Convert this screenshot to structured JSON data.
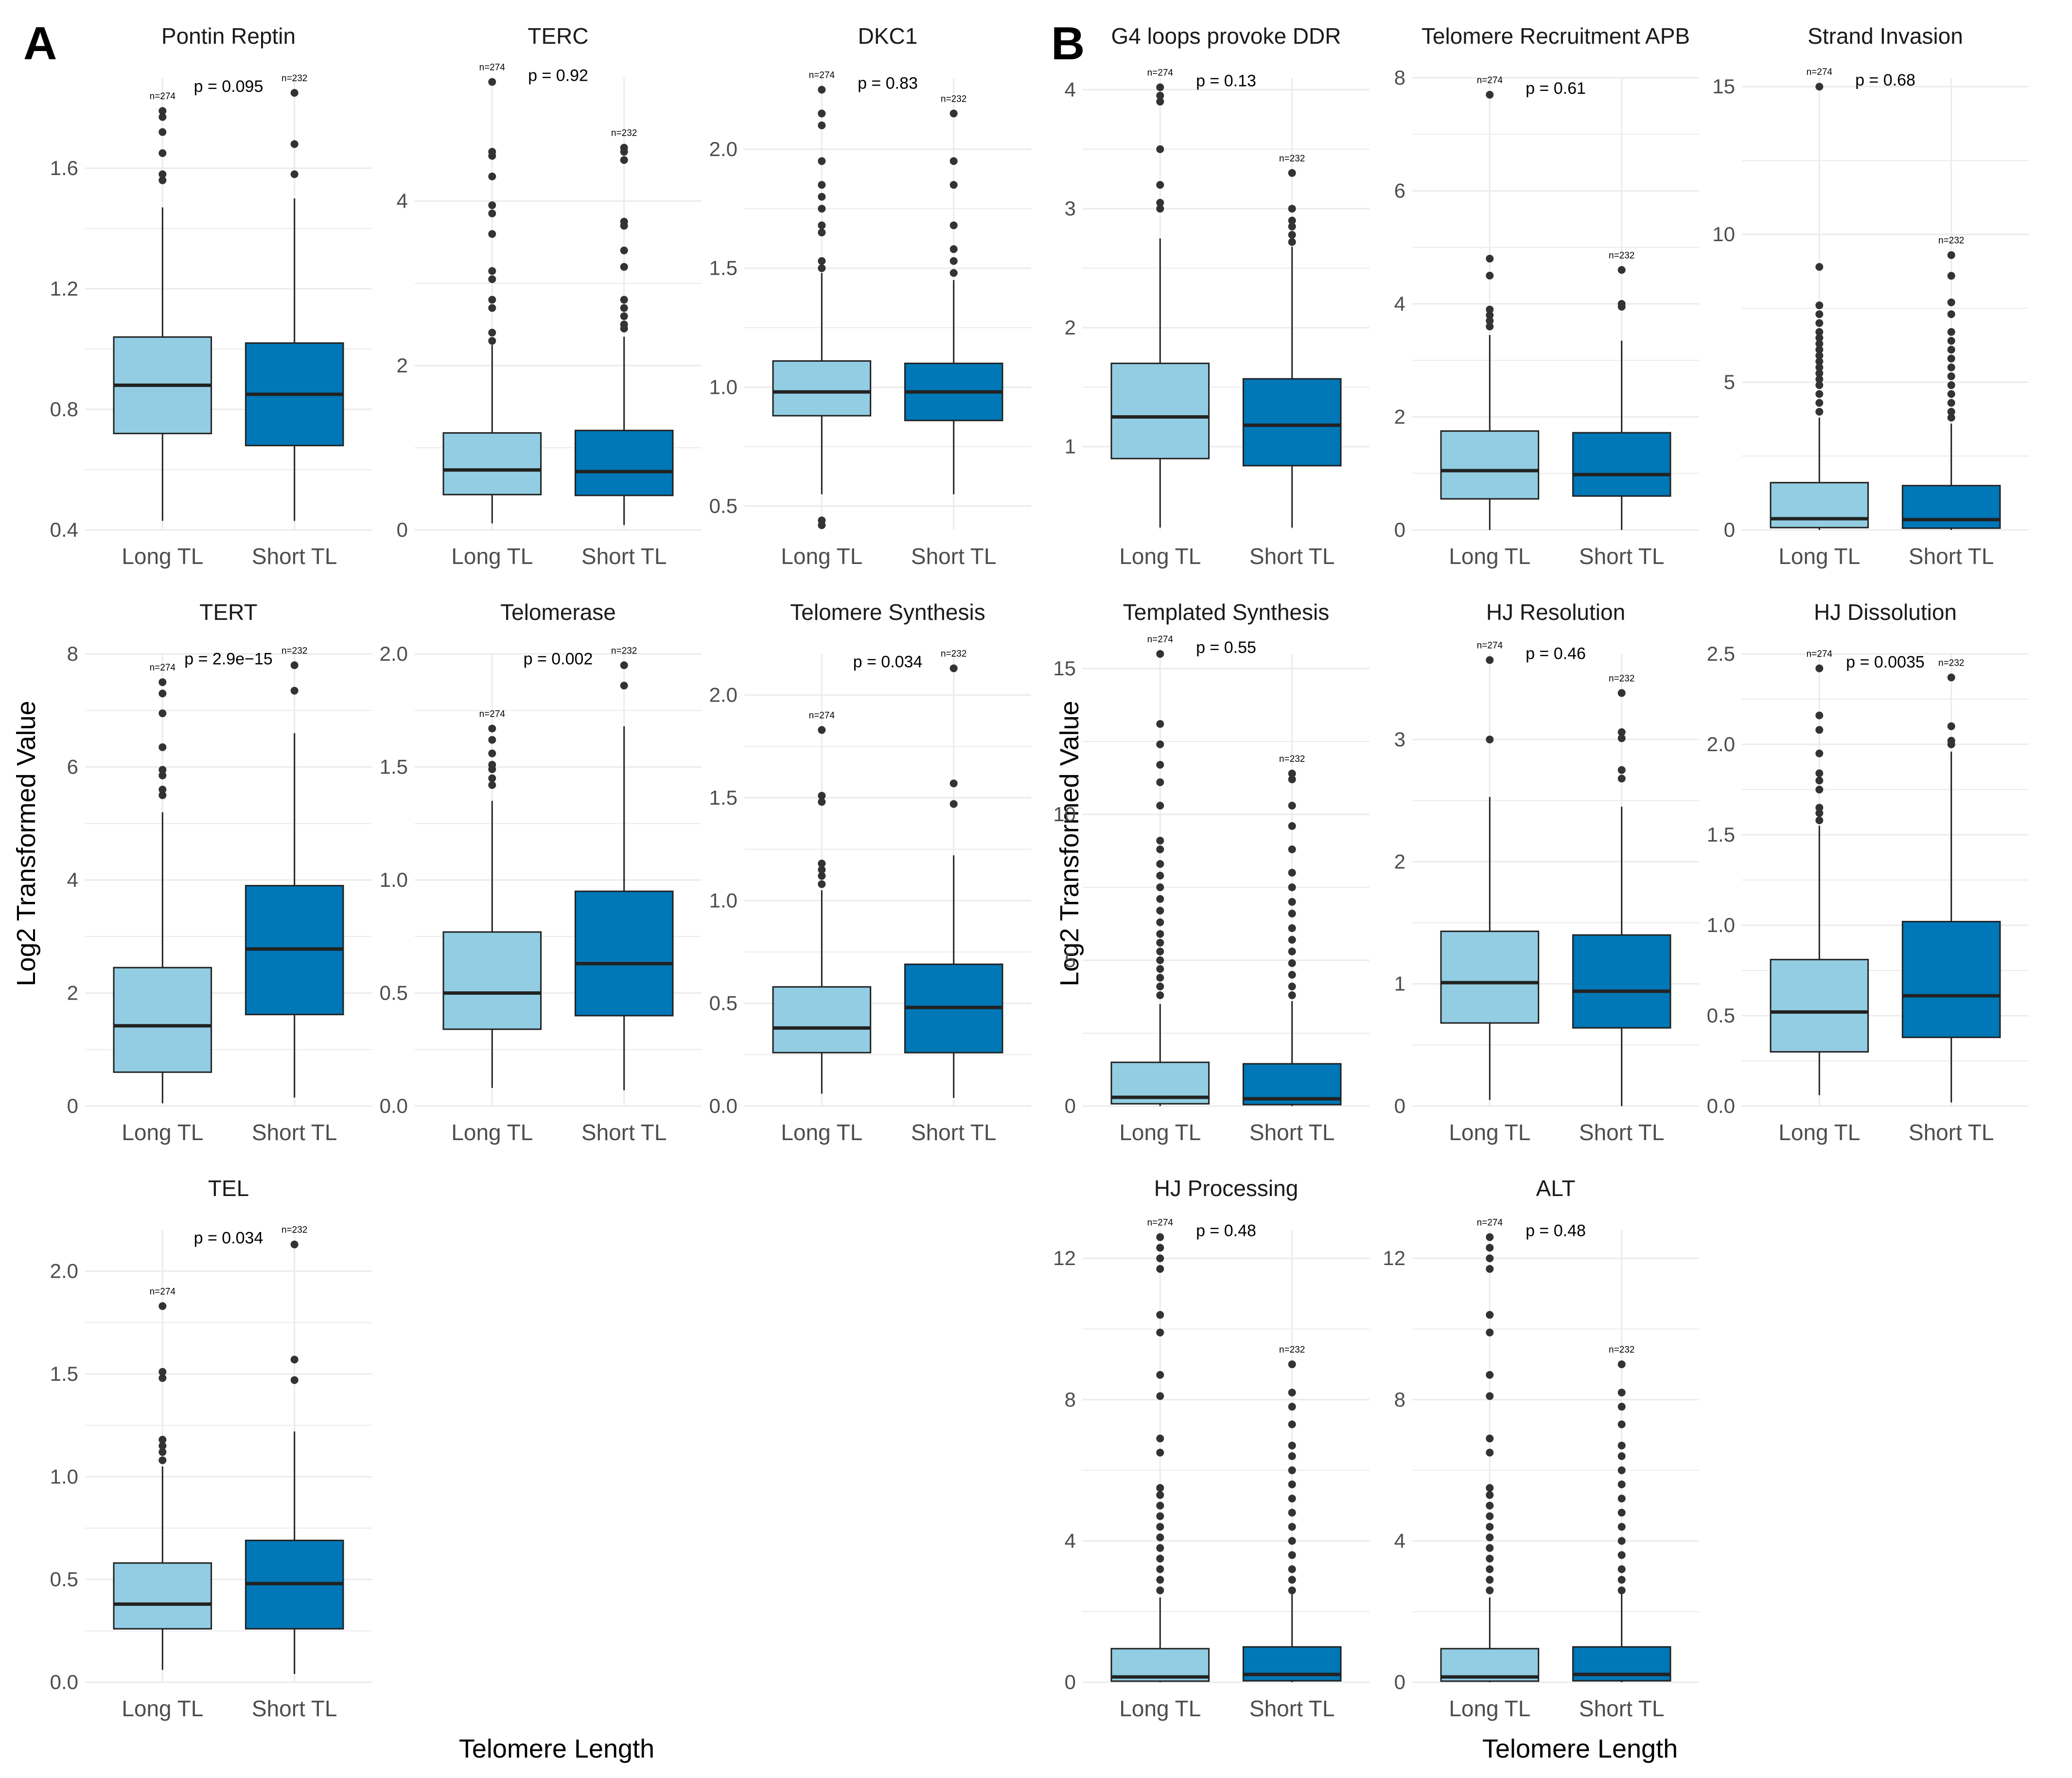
{
  "figure": {
    "panel_labels": [
      "A",
      "B"
    ],
    "y_axis_title": "Log2 Transformed Value",
    "x_axis_title": "Telomere Length",
    "p_prefix": "p ="
  },
  "colors": {
    "long": "#92CDE3",
    "short": "#0077B6",
    "grid": "#ebebeb",
    "line": "#222222",
    "outlier": "#333333"
  },
  "chart_data": [
    {
      "type": "box",
      "title": "Pontin Reptin",
      "categories": [
        "Long TL",
        "Short TL"
      ],
      "n": [
        "n=274",
        "n=232"
      ],
      "p": "0.095",
      "ylim": [
        0.4,
        1.9
      ],
      "ticks": [
        0.4,
        0.8,
        1.2,
        1.6
      ],
      "series": [
        {
          "name": "Long TL",
          "whisker_low": 0.43,
          "q1": 0.72,
          "median": 0.88,
          "q3": 1.04,
          "whisker_high": 1.47,
          "outliers": [
            1.56,
            1.58,
            1.65,
            1.72,
            1.77,
            1.79
          ]
        },
        {
          "name": "Short TL",
          "whisker_low": 0.43,
          "q1": 0.68,
          "median": 0.85,
          "q3": 1.02,
          "whisker_high": 1.5,
          "outliers": [
            1.58,
            1.68,
            1.85
          ]
        }
      ]
    },
    {
      "type": "box",
      "title": "TERC",
      "categories": [
        "Long TL",
        "Short TL"
      ],
      "n": [
        "n=274",
        "n=232"
      ],
      "p": "0.92",
      "ylim": [
        0,
        5.5
      ],
      "ticks": [
        0,
        2,
        4
      ],
      "series": [
        {
          "name": "Long TL",
          "whisker_low": 0.08,
          "q1": 0.43,
          "median": 0.73,
          "q3": 1.18,
          "whisker_high": 2.25,
          "outliers": [
            2.3,
            2.4,
            2.7,
            2.8,
            3.05,
            3.15,
            3.6,
            3.85,
            3.95,
            4.3,
            4.55,
            4.6,
            5.45
          ]
        },
        {
          "name": "Short TL",
          "whisker_low": 0.06,
          "q1": 0.42,
          "median": 0.71,
          "q3": 1.21,
          "whisker_high": 2.35,
          "outliers": [
            2.45,
            2.5,
            2.6,
            2.7,
            2.8,
            3.2,
            3.4,
            3.7,
            3.75,
            4.5,
            4.6,
            4.65
          ]
        }
      ]
    },
    {
      "type": "box",
      "title": "DKC1",
      "categories": [
        "Long TL",
        "Short TL"
      ],
      "n": [
        "n=274",
        "n=232"
      ],
      "p": "0.83",
      "ylim": [
        0.4,
        2.3
      ],
      "ticks": [
        0.5,
        1.0,
        1.5,
        2.0
      ],
      "series": [
        {
          "name": "Long TL",
          "whisker_low": 0.55,
          "q1": 0.88,
          "median": 0.98,
          "q3": 1.11,
          "whisker_high": 1.48,
          "outliers": [
            0.42,
            0.44,
            1.5,
            1.53,
            1.65,
            1.68,
            1.75,
            1.8,
            1.85,
            1.95,
            2.1,
            2.15,
            2.25
          ]
        },
        {
          "name": "Short TL",
          "whisker_low": 0.55,
          "q1": 0.86,
          "median": 0.98,
          "q3": 1.1,
          "whisker_high": 1.45,
          "outliers": [
            1.48,
            1.53,
            1.58,
            1.68,
            1.85,
            1.95,
            2.15
          ]
        }
      ]
    },
    {
      "type": "box",
      "title": "G4 loops provoke DDR",
      "categories": [
        "Long TL",
        "Short TL"
      ],
      "n": [
        "n=274",
        "n=232"
      ],
      "p": "0.13",
      "ylim": [
        0.3,
        4.1
      ],
      "ticks": [
        1,
        2,
        3,
        4
      ],
      "series": [
        {
          "name": "Long TL",
          "whisker_low": 0.32,
          "q1": 0.9,
          "median": 1.25,
          "q3": 1.7,
          "whisker_high": 2.75,
          "outliers": [
            3.0,
            3.05,
            3.2,
            3.5,
            3.9,
            3.95,
            4.02
          ]
        },
        {
          "name": "Short TL",
          "whisker_low": 0.32,
          "q1": 0.84,
          "median": 1.18,
          "q3": 1.57,
          "whisker_high": 2.68,
          "outliers": [
            2.72,
            2.78,
            2.85,
            2.9,
            3.0,
            3.3
          ]
        }
      ]
    },
    {
      "type": "box",
      "title": "Telomere Recruitment APB",
      "categories": [
        "Long TL",
        "Short TL"
      ],
      "n": [
        "n=274",
        "n=232"
      ],
      "p": "0.61",
      "ylim": [
        0,
        8
      ],
      "ticks": [
        0,
        2,
        4,
        6,
        8
      ],
      "series": [
        {
          "name": "Long TL",
          "whisker_low": 0,
          "q1": 0.55,
          "median": 1.05,
          "q3": 1.75,
          "whisker_high": 3.45,
          "outliers": [
            3.6,
            3.7,
            3.8,
            3.9,
            4.5,
            4.8,
            7.7
          ]
        },
        {
          "name": "Short TL",
          "whisker_low": 0,
          "q1": 0.6,
          "median": 0.98,
          "q3": 1.72,
          "whisker_high": 3.35,
          "outliers": [
            3.95,
            4.0,
            4.6
          ]
        }
      ]
    },
    {
      "type": "box",
      "title": "Strand Invasion",
      "categories": [
        "Long TL",
        "Short TL"
      ],
      "n": [
        "n=274",
        "n=232"
      ],
      "p": "0.68",
      "ylim": [
        0,
        15.3
      ],
      "ticks": [
        0,
        5,
        10,
        15
      ],
      "series": [
        {
          "name": "Long TL",
          "whisker_low": 0,
          "q1": 0.08,
          "median": 0.38,
          "q3": 1.6,
          "whisker_high": 3.8,
          "outliers": [
            4.0,
            4.3,
            4.6,
            4.9,
            5.1,
            5.3,
            5.5,
            5.7,
            5.9,
            6.1,
            6.3,
            6.5,
            6.7,
            7.0,
            7.3,
            7.6,
            8.9,
            15.0
          ]
        },
        {
          "name": "Short TL",
          "whisker_low": 0,
          "q1": 0.06,
          "median": 0.35,
          "q3": 1.5,
          "whisker_high": 3.6,
          "outliers": [
            3.8,
            4.0,
            4.3,
            4.6,
            4.9,
            5.2,
            5.5,
            5.8,
            6.1,
            6.4,
            6.7,
            7.3,
            7.7,
            8.6,
            9.3
          ]
        }
      ]
    },
    {
      "type": "box",
      "title": "TERT",
      "categories": [
        "Long TL",
        "Short TL"
      ],
      "n": [
        "n=274",
        "n=232"
      ],
      "p": "2.9e−15",
      "ylim": [
        0,
        8
      ],
      "ticks": [
        0,
        2,
        4,
        6,
        8
      ],
      "series": [
        {
          "name": "Long TL",
          "whisker_low": 0.05,
          "q1": 0.6,
          "median": 1.42,
          "q3": 2.45,
          "whisker_high": 5.2,
          "outliers": [
            5.5,
            5.6,
            5.85,
            5.95,
            6.35,
            6.95,
            7.3,
            7.5
          ]
        },
        {
          "name": "Short TL",
          "whisker_low": 0.15,
          "q1": 1.62,
          "median": 2.78,
          "q3": 3.9,
          "whisker_high": 6.6,
          "outliers": [
            7.35,
            7.8
          ]
        }
      ]
    },
    {
      "type": "box",
      "title": "Telomerase",
      "categories": [
        "Long TL",
        "Short TL"
      ],
      "n": [
        "n=274",
        "n=232"
      ],
      "p": "0.002",
      "ylim": [
        0,
        2
      ],
      "ticks": [
        0.0,
        0.5,
        1.0,
        1.5,
        2.0
      ],
      "series": [
        {
          "name": "Long TL",
          "whisker_low": 0.08,
          "q1": 0.34,
          "median": 0.5,
          "q3": 0.77,
          "whisker_high": 1.35,
          "outliers": [
            1.42,
            1.45,
            1.49,
            1.51,
            1.56,
            1.62,
            1.67
          ]
        },
        {
          "name": "Short TL",
          "whisker_low": 0.07,
          "q1": 0.4,
          "median": 0.63,
          "q3": 0.95,
          "whisker_high": 1.68,
          "outliers": [
            1.86,
            1.95
          ]
        }
      ]
    },
    {
      "type": "box",
      "title": "Telomere Synthesis",
      "categories": [
        "Long TL",
        "Short TL"
      ],
      "n": [
        "n=274",
        "n=232"
      ],
      "p": "0.034",
      "ylim": [
        0,
        2.2
      ],
      "ticks": [
        0.0,
        0.5,
        1.0,
        1.5,
        2.0
      ],
      "series": [
        {
          "name": "Long TL",
          "whisker_low": 0.06,
          "q1": 0.26,
          "median": 0.38,
          "q3": 0.58,
          "whisker_high": 1.05,
          "outliers": [
            1.08,
            1.12,
            1.15,
            1.18,
            1.48,
            1.51,
            1.83
          ]
        },
        {
          "name": "Short TL",
          "whisker_low": 0.04,
          "q1": 0.26,
          "median": 0.48,
          "q3": 0.69,
          "whisker_high": 1.22,
          "outliers": [
            1.47,
            1.57,
            2.13
          ]
        }
      ]
    },
    {
      "type": "box",
      "title": "Templated Synthesis",
      "categories": [
        "Long TL",
        "Short TL"
      ],
      "n": [
        "n=274",
        "n=232"
      ],
      "p": "0.55",
      "ylim": [
        0,
        15.5
      ],
      "ticks": [
        0,
        5,
        10,
        15
      ],
      "series": [
        {
          "name": "Long TL",
          "whisker_low": 0,
          "q1": 0.08,
          "median": 0.3,
          "q3": 1.5,
          "whisker_high": 3.5,
          "outliers": [
            3.8,
            4.1,
            4.4,
            4.7,
            5.0,
            5.3,
            5.6,
            5.9,
            6.3,
            6.7,
            7.1,
            7.5,
            7.9,
            8.3,
            8.8,
            9.1,
            10.3,
            11.1,
            11.7,
            12.4,
            13.1,
            15.5
          ]
        },
        {
          "name": "Short TL",
          "whisker_low": 0,
          "q1": 0.05,
          "median": 0.25,
          "q3": 1.45,
          "whisker_high": 3.6,
          "outliers": [
            3.8,
            4.1,
            4.5,
            4.9,
            5.3,
            5.7,
            6.1,
            6.6,
            7.0,
            7.5,
            8.0,
            8.8,
            9.6,
            10.3,
            11.2,
            11.4
          ]
        }
      ]
    },
    {
      "type": "box",
      "title": "HJ Resolution",
      "categories": [
        "Long TL",
        "Short TL"
      ],
      "n": [
        "n=274",
        "n=232"
      ],
      "p": "0.46",
      "ylim": [
        0,
        3.7
      ],
      "ticks": [
        0,
        1,
        2,
        3
      ],
      "series": [
        {
          "name": "Long TL",
          "whisker_low": 0.05,
          "q1": 0.68,
          "median": 1.01,
          "q3": 1.43,
          "whisker_high": 2.53,
          "outliers": [
            3.0,
            3.65
          ]
        },
        {
          "name": "Short TL",
          "whisker_low": 0,
          "q1": 0.64,
          "median": 0.94,
          "q3": 1.4,
          "whisker_high": 2.45,
          "outliers": [
            2.68,
            2.75,
            3.01,
            3.06,
            3.38
          ]
        }
      ]
    },
    {
      "type": "box",
      "title": "HJ Dissolution",
      "categories": [
        "Long TL",
        "Short TL"
      ],
      "n": [
        "n=274",
        "n=232"
      ],
      "p": "0.0035",
      "ylim": [
        0,
        2.5
      ],
      "ticks": [
        0.0,
        0.5,
        1.0,
        1.5,
        2.0,
        2.5
      ],
      "series": [
        {
          "name": "Long TL",
          "whisker_low": 0.06,
          "q1": 0.3,
          "median": 0.52,
          "q3": 0.81,
          "whisker_high": 1.55,
          "outliers": [
            1.58,
            1.62,
            1.65,
            1.75,
            1.8,
            1.84,
            1.95,
            2.08,
            2.16,
            2.42
          ]
        },
        {
          "name": "Short TL",
          "whisker_low": 0.02,
          "q1": 0.38,
          "median": 0.61,
          "q3": 1.02,
          "whisker_high": 1.96,
          "outliers": [
            2.0,
            2.02,
            2.1,
            2.37
          ]
        }
      ]
    },
    {
      "type": "box",
      "title": "TEL",
      "categories": [
        "Long TL",
        "Short TL"
      ],
      "n": [
        "n=274",
        "n=232"
      ],
      "p": "0.034",
      "ylim": [
        0,
        2.2
      ],
      "ticks": [
        0.0,
        0.5,
        1.0,
        1.5,
        2.0
      ],
      "series": [
        {
          "name": "Long TL",
          "whisker_low": 0.06,
          "q1": 0.26,
          "median": 0.38,
          "q3": 0.58,
          "whisker_high": 1.05,
          "outliers": [
            1.08,
            1.12,
            1.15,
            1.18,
            1.48,
            1.51,
            1.83
          ]
        },
        {
          "name": "Short TL",
          "whisker_low": 0.04,
          "q1": 0.26,
          "median": 0.48,
          "q3": 0.69,
          "whisker_high": 1.22,
          "outliers": [
            1.47,
            1.57,
            2.13
          ]
        }
      ]
    },
    {
      "type": "box",
      "title": "HJ Processing",
      "categories": [
        "Long TL",
        "Short TL"
      ],
      "n": [
        "n=274",
        "n=232"
      ],
      "p": "0.48",
      "ylim": [
        0,
        12.8
      ],
      "ticks": [
        0,
        4,
        8,
        12
      ],
      "series": [
        {
          "name": "Long TL",
          "whisker_low": 0,
          "q1": 0.03,
          "median": 0.15,
          "q3": 0.95,
          "whisker_high": 2.4,
          "outliers": [
            2.6,
            2.9,
            3.2,
            3.5,
            3.8,
            4.1,
            4.4,
            4.7,
            5.0,
            5.3,
            5.5,
            6.5,
            6.9,
            8.1,
            8.7,
            9.9,
            10.4,
            11.7,
            12.0,
            12.3,
            12.6
          ]
        },
        {
          "name": "Short TL",
          "whisker_low": 0,
          "q1": 0.04,
          "median": 0.22,
          "q3": 1.0,
          "whisker_high": 2.5,
          "outliers": [
            2.6,
            2.9,
            3.2,
            3.6,
            4.0,
            4.4,
            4.8,
            5.2,
            5.6,
            6.0,
            6.4,
            6.7,
            7.3,
            7.8,
            8.2,
            9.0
          ]
        }
      ]
    },
    {
      "type": "box",
      "title": "ALT",
      "categories": [
        "Long TL",
        "Short TL"
      ],
      "n": [
        "n=274",
        "n=232"
      ],
      "p": "0.48",
      "ylim": [
        0,
        12.8
      ],
      "ticks": [
        0,
        4,
        8,
        12
      ],
      "series": [
        {
          "name": "Long TL",
          "whisker_low": 0,
          "q1": 0.03,
          "median": 0.15,
          "q3": 0.95,
          "whisker_high": 2.4,
          "outliers": [
            2.6,
            2.9,
            3.2,
            3.5,
            3.8,
            4.1,
            4.4,
            4.7,
            5.0,
            5.3,
            5.5,
            6.5,
            6.9,
            8.1,
            8.7,
            9.9,
            10.4,
            11.7,
            12.0,
            12.3,
            12.6
          ]
        },
        {
          "name": "Short TL",
          "whisker_low": 0,
          "q1": 0.04,
          "median": 0.22,
          "q3": 1.0,
          "whisker_high": 2.5,
          "outliers": [
            2.6,
            2.9,
            3.2,
            3.6,
            4.0,
            4.4,
            4.8,
            5.2,
            5.6,
            6.0,
            6.4,
            6.7,
            7.3,
            7.8,
            8.2,
            9.0
          ]
        }
      ]
    }
  ]
}
